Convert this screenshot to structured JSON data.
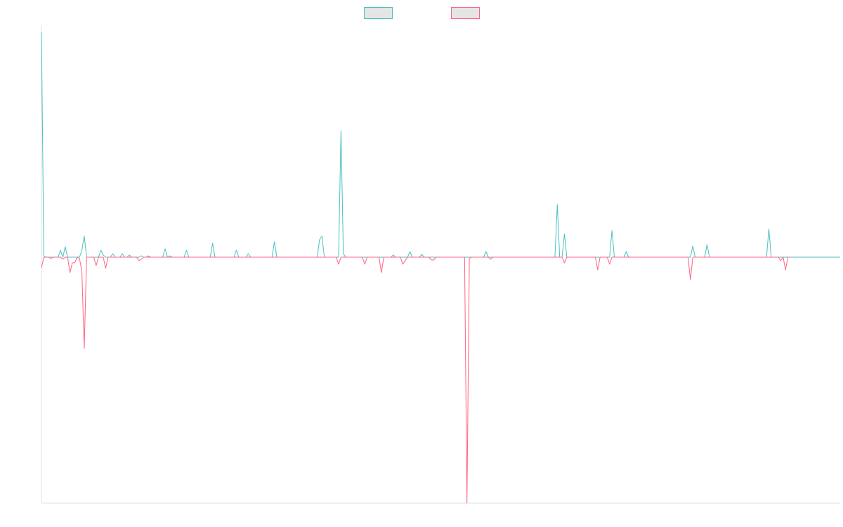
{
  "chart_data": {
    "type": "line",
    "title": "",
    "xlabel": "",
    "ylabel": "",
    "ylim": [
      -35,
      33
    ],
    "grid": false,
    "legend_position": "top-center",
    "series": [
      {
        "name": "",
        "color": "#4bc0c0",
        "fill": "#e5e5e5",
        "values": [
          32,
          0.2,
          0,
          0,
          0,
          0,
          0,
          0,
          1,
          0,
          1.5,
          0,
          0,
          0,
          0,
          0,
          0,
          1,
          3,
          0,
          0,
          0,
          0,
          0,
          0,
          1,
          0.3,
          0,
          0,
          0,
          0.5,
          0,
          0,
          0,
          0.5,
          0,
          0,
          0.3,
          0,
          0,
          0,
          0,
          0.2,
          0,
          0,
          0.2,
          0,
          0,
          0,
          0,
          0,
          0,
          1.2,
          0,
          0.2,
          0,
          0,
          0,
          0,
          0,
          0,
          1,
          0,
          0,
          0,
          0,
          0,
          0,
          0,
          0,
          0,
          0,
          2,
          0,
          0,
          0,
          0,
          0,
          0,
          0,
          0,
          0,
          1,
          0,
          0,
          0,
          0,
          0.5,
          0,
          0,
          0,
          0,
          0,
          0,
          0,
          0,
          0,
          0,
          2.2,
          0,
          0,
          0,
          0,
          0,
          0,
          0,
          0,
          0,
          0,
          0,
          0,
          0,
          0,
          0,
          0,
          0,
          0,
          2.5,
          3,
          0,
          0,
          0,
          0,
          0,
          0,
          0,
          18,
          0.5,
          0,
          0,
          0,
          0,
          0,
          0,
          0,
          0,
          0,
          0,
          0,
          0,
          0,
          0,
          0,
          0,
          0,
          0,
          0,
          0,
          0.3,
          0,
          0,
          0,
          0,
          0,
          0,
          0.8,
          0,
          0,
          0,
          0,
          0.4,
          0,
          0,
          0,
          0,
          0,
          0,
          0,
          0,
          0,
          0,
          0,
          0,
          0,
          0,
          0,
          0,
          0,
          0,
          0,
          0,
          0,
          0,
          0,
          0,
          0,
          0,
          0.8,
          0,
          0,
          0,
          0,
          0,
          0,
          0,
          0,
          0,
          0,
          0,
          0,
          0,
          0,
          0,
          0,
          0,
          0,
          0,
          0,
          0,
          0,
          0,
          0,
          0,
          0,
          0,
          0,
          0,
          7.5,
          0,
          0,
          3.3,
          0,
          0,
          0,
          0,
          0,
          0,
          0,
          0,
          0,
          0,
          0,
          0,
          0,
          0,
          0,
          0,
          0,
          0,
          0,
          3.8,
          0,
          0,
          0,
          0,
          0,
          0.8,
          0,
          0,
          0,
          0,
          0,
          0,
          0,
          0,
          0,
          0,
          0,
          0,
          0,
          0,
          0,
          0,
          0,
          0,
          0,
          0,
          0,
          0,
          0,
          0,
          0,
          0,
          0,
          1.6,
          0,
          0,
          0,
          0,
          0,
          1.8,
          0,
          0,
          0,
          0,
          0,
          0,
          0,
          0,
          0,
          0,
          0,
          0,
          0,
          0,
          0,
          0,
          0,
          0,
          0,
          0,
          0,
          0,
          0,
          0,
          0,
          4,
          0,
          0,
          0,
          0,
          0,
          0,
          0,
          0,
          0,
          0,
          0,
          0,
          0,
          0,
          0,
          0,
          0,
          0,
          0,
          0,
          0,
          0,
          0,
          0,
          0,
          0,
          0,
          0,
          0,
          0
        ]
      },
      {
        "name": "",
        "color": "#ff6384",
        "fill": "#e5e5e5",
        "values": [
          -1.5,
          0,
          0,
          0,
          -0.2,
          0,
          0,
          0,
          0,
          -0.3,
          0,
          0,
          -2.2,
          -0.8,
          -0.8,
          0,
          -0.2,
          -2,
          -13,
          0,
          0,
          0,
          0,
          -1.2,
          0,
          0,
          0,
          -1.6,
          0,
          0,
          0,
          0,
          0,
          0,
          0,
          0,
          0,
          0,
          0,
          0,
          0,
          -0.5,
          -0.3,
          0,
          0,
          0,
          0,
          0,
          0,
          0,
          0,
          0,
          0,
          0,
          0,
          0,
          0,
          0,
          0,
          0,
          0,
          0,
          0,
          0,
          0,
          0,
          0,
          0,
          0,
          0,
          0,
          0,
          0,
          0,
          0,
          0,
          0,
          0,
          0,
          0,
          0,
          0,
          0,
          0,
          0,
          0,
          0,
          0,
          0,
          0,
          0,
          0,
          0,
          0,
          0,
          0,
          0,
          0,
          0,
          0,
          0,
          0,
          0,
          0,
          0,
          0,
          0,
          0,
          0,
          0,
          0,
          0,
          0,
          0,
          0,
          0,
          0,
          0,
          0,
          0,
          0,
          0,
          0,
          0,
          0,
          -1,
          0,
          0,
          0,
          0,
          0,
          0,
          0,
          0,
          0,
          0,
          -1,
          0,
          0,
          0,
          0,
          0,
          0,
          -2.2,
          0,
          0,
          0,
          0,
          0,
          0,
          0,
          0,
          -1,
          -0.5,
          0,
          0,
          0,
          0,
          0,
          0,
          0,
          0,
          0,
          0,
          -0.4,
          -0.4,
          0,
          0,
          0,
          0,
          0,
          0,
          0,
          0,
          0,
          0,
          0,
          0,
          0,
          -35,
          -0.2,
          0,
          0,
          0,
          0,
          0,
          0,
          0,
          0,
          -0.3,
          0,
          0,
          0,
          0,
          0,
          0,
          0,
          0,
          0,
          0,
          0,
          0,
          0,
          0,
          0,
          0,
          0,
          0,
          0,
          0,
          0,
          0,
          0,
          0,
          0,
          0,
          0,
          0,
          0,
          0,
          -0.8,
          0,
          0,
          0,
          0,
          0,
          0,
          0,
          0,
          0,
          0,
          0,
          0,
          0,
          -1.8,
          0,
          0,
          0,
          0,
          -1,
          0,
          0,
          0,
          0,
          0,
          0,
          0,
          0,
          0,
          0,
          0,
          0,
          0,
          0,
          0,
          0,
          0,
          0,
          0,
          0,
          0,
          0,
          0,
          0,
          0,
          0,
          0,
          0,
          0,
          0,
          0,
          0,
          0,
          -3.2,
          0,
          0,
          0,
          0,
          0,
          0,
          0,
          0,
          0,
          0,
          0,
          0,
          0,
          0,
          0,
          0,
          0,
          0,
          0,
          0,
          0,
          0,
          0,
          0,
          0,
          0,
          0,
          0,
          0,
          0,
          0,
          0,
          0,
          0,
          0,
          0,
          0,
          -0.5,
          0,
          -1.8,
          0,
          0
        ]
      }
    ]
  }
}
